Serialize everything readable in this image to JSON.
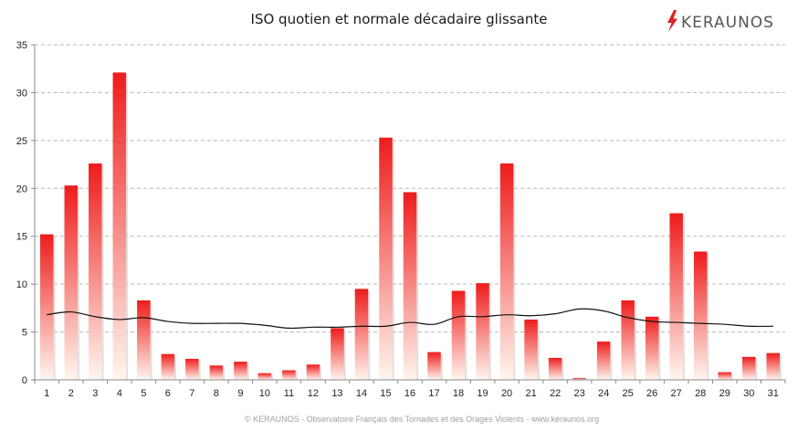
{
  "chart_data": {
    "type": "bar",
    "title": "ISO quotien et normale décadaire glissante",
    "xlabel": "",
    "ylabel": "",
    "ylim": [
      0,
      35
    ],
    "yticks": [
      0,
      5,
      10,
      15,
      20,
      25,
      30,
      35
    ],
    "grid": true,
    "categories": [
      "1",
      "2",
      "3",
      "4",
      "5",
      "6",
      "7",
      "8",
      "9",
      "10",
      "11",
      "12",
      "13",
      "14",
      "15",
      "16",
      "17",
      "18",
      "19",
      "20",
      "21",
      "22",
      "23",
      "24",
      "25",
      "26",
      "27",
      "28",
      "29",
      "30",
      "31"
    ],
    "series": [
      {
        "kind": "bar",
        "values": [
          15.2,
          20.3,
          22.6,
          32.1,
          8.3,
          2.7,
          2.2,
          1.5,
          1.9,
          0.7,
          1.0,
          1.6,
          5.4,
          9.5,
          25.3,
          19.6,
          2.9,
          9.3,
          10.1,
          22.6,
          6.3,
          2.3,
          0.2,
          4.0,
          8.3,
          6.6,
          17.4,
          13.4,
          0.8,
          2.4,
          2.8
        ],
        "color_top": "#ee1c1c",
        "color_bottom": "#fff6ee"
      },
      {
        "kind": "line",
        "values": [
          6.8,
          7.1,
          6.6,
          6.3,
          6.5,
          6.1,
          5.9,
          5.9,
          5.9,
          5.7,
          5.4,
          5.5,
          5.5,
          5.6,
          5.6,
          6.0,
          5.8,
          6.6,
          6.6,
          6.8,
          6.7,
          6.9,
          7.4,
          7.2,
          6.5,
          6.1,
          6.0,
          5.9,
          5.8,
          5.6,
          5.6
        ],
        "color": "#111111"
      }
    ]
  },
  "brand": {
    "name": "KERAUNOS",
    "bolt_color": "#e02020",
    "text_color": "#555555"
  },
  "footer": "© KERAUNOS - Observatoire Français des Tornades et des Orages Violents - www.keraunos.org"
}
